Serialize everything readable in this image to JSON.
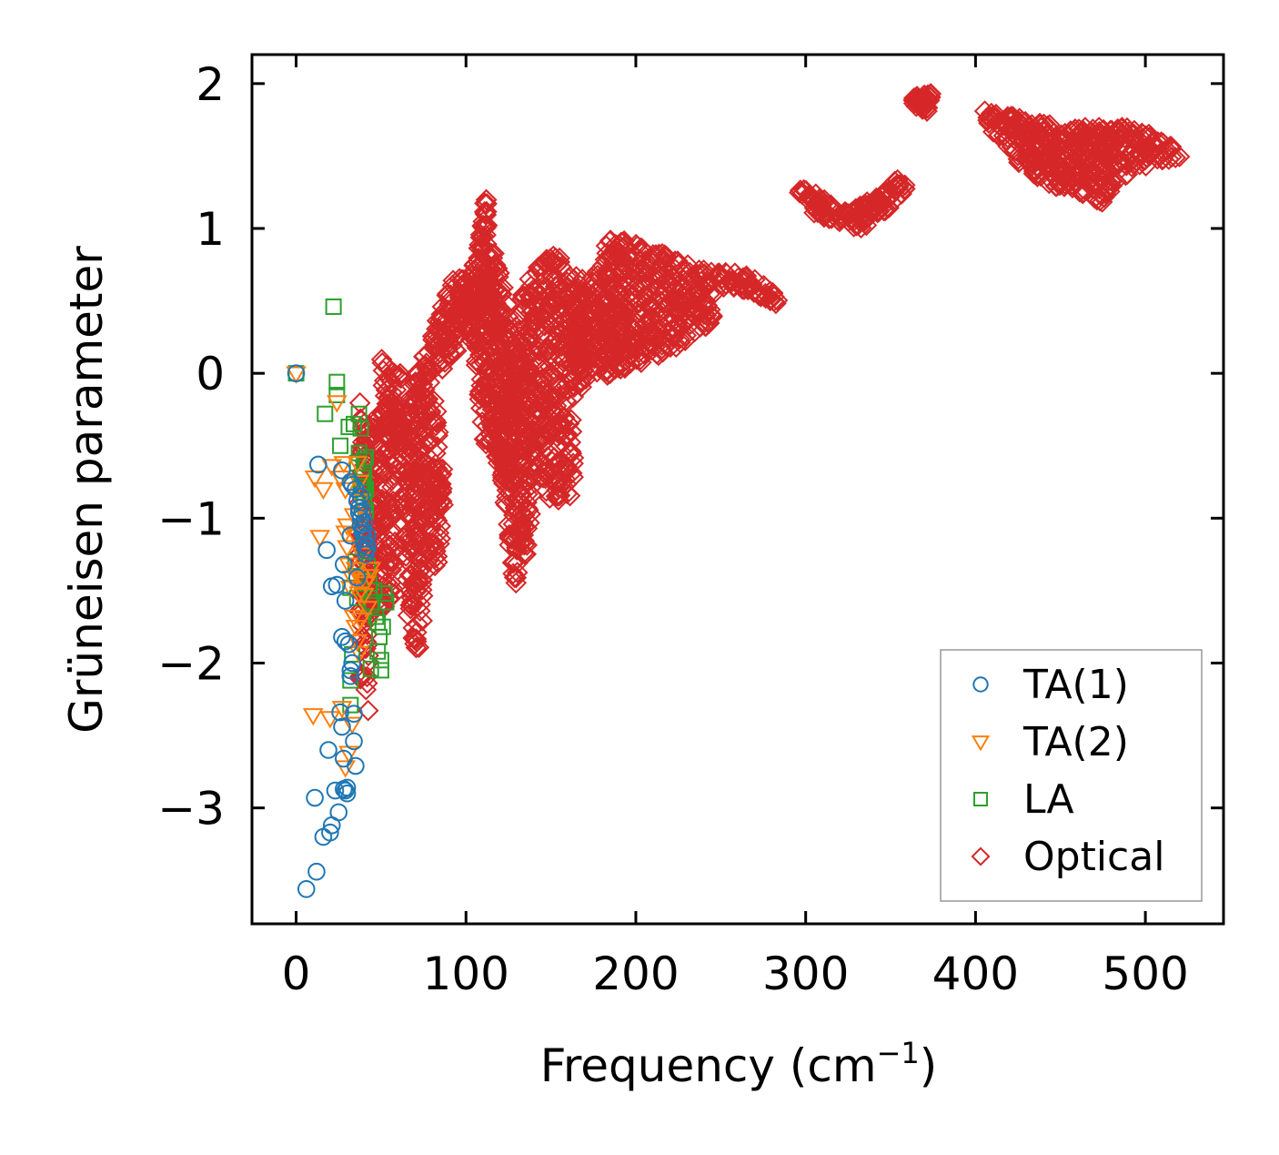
{
  "chart_data": {
    "type": "scatter",
    "title": "",
    "xlabel_text": "Frequency (cm",
    "xlabel_sup": "−1",
    "xlabel_close": ")",
    "ylabel": "Grüneisen parameter",
    "xlim": [
      -26,
      546
    ],
    "ylim": [
      -3.8,
      2.2
    ],
    "xticks": [
      0,
      100,
      200,
      300,
      400,
      500
    ],
    "xtick_labels": [
      "0",
      "100",
      "200",
      "300",
      "400",
      "500"
    ],
    "yticks": [
      -3,
      -2,
      -1,
      0,
      1,
      2
    ],
    "ytick_labels": [
      "−3",
      "−2",
      "−1",
      "0",
      "1",
      "2"
    ],
    "legend_position": "lower-right",
    "series": [
      {
        "name": "TA(1)",
        "marker": "circle",
        "color": "#1f77b4",
        "points": [
          [
            0,
            0
          ],
          [
            6,
            -3.56
          ],
          [
            11,
            -2.93
          ],
          [
            12,
            -3.44
          ],
          [
            13,
            -0.63
          ],
          [
            16,
            -3.2
          ],
          [
            18,
            -1.22
          ],
          [
            19,
            -2.6
          ],
          [
            20,
            -3.17
          ],
          [
            21,
            -3.12
          ],
          [
            21,
            -1.47
          ],
          [
            23,
            -2.88
          ],
          [
            24,
            -1.46
          ],
          [
            25,
            -3.03
          ],
          [
            26,
            -2.34
          ],
          [
            27,
            -2.44
          ],
          [
            27,
            -1.82
          ],
          [
            27,
            -0.67
          ],
          [
            28,
            -1.32
          ],
          [
            28,
            -2.66
          ],
          [
            28,
            -2.87
          ],
          [
            29,
            -1.57
          ],
          [
            29,
            -1.85
          ],
          [
            29,
            -2.88
          ],
          [
            30,
            -2.9
          ],
          [
            30,
            -2.86
          ],
          [
            31,
            -1.87
          ],
          [
            32,
            -2.05
          ],
          [
            32,
            -2.09
          ],
          [
            32,
            -1.12
          ],
          [
            32,
            -0.75
          ],
          [
            33,
            -0.77
          ],
          [
            33,
            -2.0
          ],
          [
            34,
            -2.54
          ],
          [
            34,
            -2.35
          ],
          [
            35,
            -2.71
          ],
          [
            35,
            -0.8
          ],
          [
            36,
            -0.88
          ],
          [
            36,
            -1.41
          ],
          [
            37,
            -0.93
          ],
          [
            37,
            -0.96
          ],
          [
            38,
            -1.0
          ],
          [
            38,
            -1.05
          ],
          [
            39,
            -1.08
          ],
          [
            39,
            -1.1
          ],
          [
            40,
            -1.14
          ],
          [
            40,
            -1.18
          ],
          [
            41,
            -1.22
          ],
          [
            41,
            -1.25
          ],
          [
            42,
            -1.2
          ],
          [
            42,
            -1.12
          ],
          [
            38,
            -0.85
          ],
          [
            39,
            -0.95
          ],
          [
            40,
            -1.03
          ]
        ]
      },
      {
        "name": "TA(2)",
        "marker": "triangle-down",
        "color": "#ff7f0e",
        "points": [
          [
            0,
            0
          ],
          [
            10,
            -2.36
          ],
          [
            11,
            -0.72
          ],
          [
            14,
            -1.13
          ],
          [
            16,
            -0.8
          ],
          [
            20,
            -2.38
          ],
          [
            21,
            -0.64
          ],
          [
            24,
            -0.2
          ],
          [
            26,
            -0.72
          ],
          [
            27,
            -2.31
          ],
          [
            28,
            -0.62
          ],
          [
            29,
            -0.8
          ],
          [
            29,
            -1.1
          ],
          [
            29,
            -2.72
          ],
          [
            30,
            -1.2
          ],
          [
            30,
            -1.05
          ],
          [
            31,
            -2.62
          ],
          [
            31,
            -1.32
          ],
          [
            32,
            -1.48
          ],
          [
            33,
            -1.41
          ],
          [
            33,
            -2.42
          ],
          [
            34,
            -1.68
          ],
          [
            35,
            -1.75
          ],
          [
            35,
            -1.35
          ],
          [
            36,
            -1.35
          ],
          [
            36,
            -1.85
          ],
          [
            37,
            -1.93
          ],
          [
            37,
            -1.52
          ],
          [
            38,
            -1.43
          ],
          [
            38,
            -1.7
          ],
          [
            39,
            -1.25
          ],
          [
            40,
            -1.53
          ],
          [
            41,
            -1.45
          ],
          [
            42,
            -1.62
          ],
          [
            43,
            -1.4
          ],
          [
            44,
            -1.35
          ],
          [
            36,
            -0.62
          ],
          [
            37,
            -0.75
          ],
          [
            38,
            -0.88
          ],
          [
            39,
            -1.0
          ],
          [
            34,
            -0.98
          ],
          [
            35,
            -1.12
          ]
        ]
      },
      {
        "name": "LA",
        "marker": "square",
        "color": "#2ca02c",
        "points": [
          [
            0,
            0
          ],
          [
            17,
            -0.28
          ],
          [
            22,
            0.46
          ],
          [
            24,
            -0.06
          ],
          [
            24,
            -0.15
          ],
          [
            26,
            -0.5
          ],
          [
            31,
            -0.37
          ],
          [
            32,
            -1.48
          ],
          [
            32,
            -2.29
          ],
          [
            32,
            -2.12
          ],
          [
            33,
            -1.94
          ],
          [
            34,
            -0.35
          ],
          [
            35,
            -1.3
          ],
          [
            36,
            -1.55
          ],
          [
            36,
            -0.62
          ],
          [
            37,
            -0.28
          ],
          [
            37,
            -0.55
          ],
          [
            38,
            -0.38
          ],
          [
            38,
            -0.78
          ],
          [
            39,
            -0.72
          ],
          [
            39,
            -0.82
          ],
          [
            40,
            -0.9
          ],
          [
            40,
            -0.6
          ],
          [
            40,
            -0.75
          ],
          [
            40,
            -0.85
          ],
          [
            41,
            -0.95
          ],
          [
            42,
            -1.33
          ],
          [
            43,
            -1.45
          ],
          [
            44,
            -1.6
          ],
          [
            44,
            -2.04
          ],
          [
            45,
            -1.58
          ],
          [
            46,
            -1.5
          ],
          [
            47,
            -1.68
          ],
          [
            48,
            -1.72
          ],
          [
            48,
            -1.92
          ],
          [
            49,
            -1.82
          ],
          [
            50,
            -1.98
          ],
          [
            50,
            -2.05
          ],
          [
            51,
            -1.75
          ],
          [
            52,
            -1.52
          ],
          [
            53,
            -1.58
          ],
          [
            41,
            -0.58
          ],
          [
            41,
            -0.8
          ],
          [
            40,
            -0.7
          ]
        ]
      },
      {
        "name": "Optical",
        "marker": "diamond",
        "color": "#d62728",
        "regions": [
          [
            [
              37,
              -0.05
            ],
            [
              44,
              -0.6
            ],
            [
              44,
              -2.4
            ],
            [
              37,
              -2.25
            ]
          ],
          [
            [
              40,
              -0.5
            ],
            [
              55,
              -0.1
            ],
            [
              60,
              -0.3
            ],
            [
              58,
              -1.6
            ],
            [
              44,
              -1.65
            ],
            [
              40,
              -1.2
            ]
          ],
          [
            [
              50,
              0.15
            ],
            [
              62,
              0.0
            ],
            [
              62,
              -0.5
            ],
            [
              52,
              -0.3
            ]
          ],
          [
            [
              62,
              -0.4
            ],
            [
              70,
              -0.0
            ],
            [
              72,
              -0.6
            ],
            [
              75,
              -1.7
            ],
            [
              72,
              -2.0
            ],
            [
              66,
              -1.7
            ],
            [
              63,
              -1.0
            ]
          ],
          [
            [
              70,
              0.0
            ],
            [
              78,
              0.2
            ],
            [
              85,
              -0.4
            ],
            [
              88,
              -0.7
            ],
            [
              84,
              -1.3
            ],
            [
              78,
              -1.4
            ],
            [
              73,
              -1.0
            ]
          ],
          [
            [
              78,
              0.2
            ],
            [
              90,
              0.6
            ],
            [
              98,
              0.75
            ],
            [
              100,
              0.35
            ],
            [
              94,
              0.1
            ],
            [
              84,
              0.0
            ]
          ],
          [
            [
              96,
              0.4
            ],
            [
              108,
              0.9
            ],
            [
              112,
              1.27
            ],
            [
              116,
              0.5
            ],
            [
              104,
              0.2
            ]
          ],
          [
            [
              104,
              0.3
            ],
            [
              116,
              0.9
            ],
            [
              130,
              0.2
            ],
            [
              126,
              -0.8
            ],
            [
              110,
              -0.5
            ]
          ],
          [
            [
              116,
              -0.2
            ],
            [
              132,
              0.3
            ],
            [
              140,
              -0.3
            ],
            [
              138,
              -1.2
            ],
            [
              128,
              -1.5
            ],
            [
              122,
              -0.8
            ]
          ],
          [
            [
              128,
              0.5
            ],
            [
              150,
              0.85
            ],
            [
              170,
              0.7
            ],
            [
              170,
              -0.1
            ],
            [
              150,
              -0.3
            ],
            [
              132,
              -0.1
            ]
          ],
          [
            [
              140,
              -0.2
            ],
            [
              162,
              -0.3
            ],
            [
              165,
              -0.85
            ],
            [
              150,
              -0.9
            ],
            [
              138,
              -0.6
            ]
          ],
          [
            [
              160,
              0.3
            ],
            [
              185,
              0.95
            ],
            [
              210,
              0.85
            ],
            [
              240,
              0.75
            ],
            [
              250,
              0.7
            ],
            [
              245,
              0.35
            ],
            [
              220,
              0.15
            ],
            [
              190,
              0.0
            ],
            [
              165,
              -0.05
            ]
          ],
          [
            [
              245,
              0.7
            ],
            [
              265,
              0.7
            ],
            [
              282,
              0.55
            ],
            [
              285,
              0.45
            ],
            [
              270,
              0.55
            ],
            [
              250,
              0.6
            ]
          ],
          [
            [
              294,
              1.28
            ],
            [
              305,
              1.25
            ],
            [
              312,
              1.2
            ],
            [
              320,
              1.1
            ],
            [
              330,
              1.15
            ],
            [
              345,
              1.25
            ],
            [
              355,
              1.35
            ],
            [
              362,
              1.3
            ],
            [
              350,
              1.15
            ],
            [
              335,
              1.0
            ],
            [
              320,
              1.02
            ],
            [
              305,
              1.1
            ]
          ],
          [
            [
              362,
              1.9
            ],
            [
              375,
              1.95
            ],
            [
              372,
              1.8
            ],
            [
              364,
              1.85
            ]
          ],
          [
            [
              405,
              1.82
            ],
            [
              420,
              1.78
            ],
            [
              440,
              1.72
            ],
            [
              465,
              1.7
            ],
            [
              490,
              1.7
            ],
            [
              510,
              1.62
            ],
            [
              522,
              1.5
            ],
            [
              505,
              1.45
            ],
            [
              485,
              1.35
            ],
            [
              475,
              1.18
            ],
            [
              460,
              1.25
            ],
            [
              440,
              1.3
            ],
            [
              425,
              1.45
            ],
            [
              410,
              1.65
            ]
          ]
        ]
      }
    ]
  }
}
